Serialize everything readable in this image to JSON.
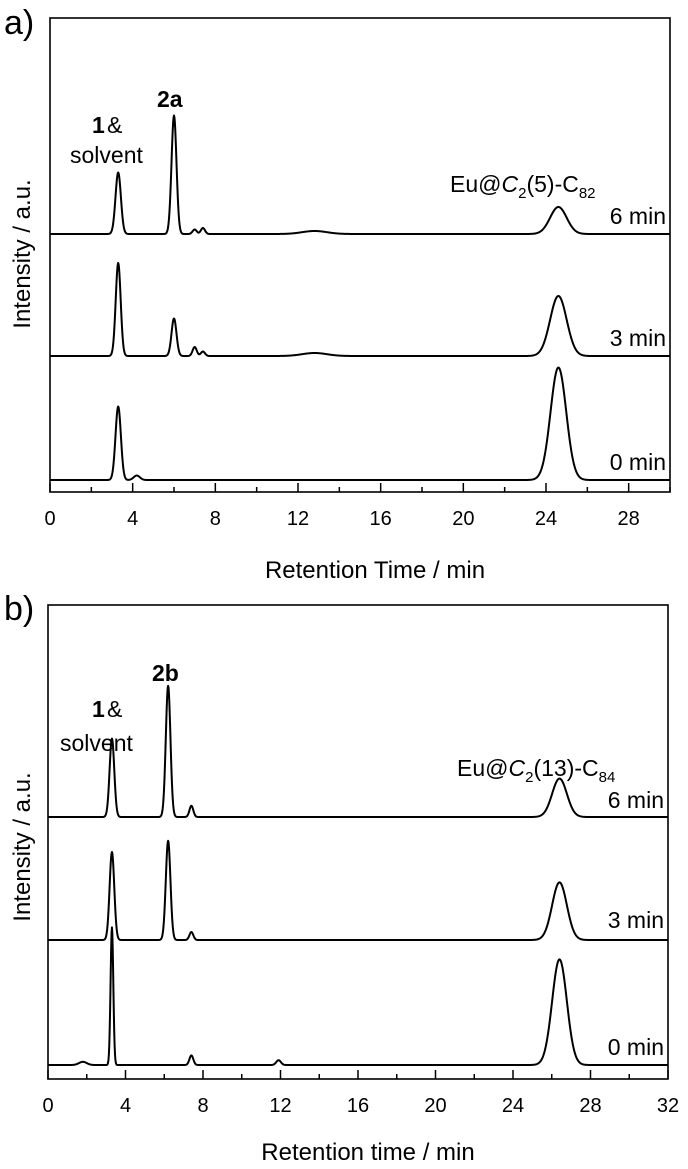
{
  "chart_data": [
    {
      "type": "line",
      "panel_label": "a)",
      "xlabel": "Retention Time / min",
      "ylabel": "Intensity / a.u.",
      "xlim": [
        0,
        30
      ],
      "x_ticks": [
        "0",
        "4",
        "8",
        "12",
        "16",
        "20",
        "24",
        "28"
      ],
      "peak_labels": {
        "p1_number": "1",
        "p1_amp": "&",
        "p1_solvent": "solvent",
        "p2": "2a"
      },
      "compound_label": {
        "prefix": "Eu@",
        "cage_symbol": "C",
        "cage_sub": "2",
        "isomer": "(5)-C",
        "carbon_sub": "82"
      },
      "series": [
        {
          "name": "6 min",
          "peaks": [
            {
              "x": 3.3,
              "height": 0.41,
              "width": 0.13
            },
            {
              "x": 6.0,
              "height": 0.79,
              "width": 0.12
            },
            {
              "x": 7.0,
              "height": 0.03,
              "width": 0.1
            },
            {
              "x": 7.4,
              "height": 0.04,
              "width": 0.1
            },
            {
              "x": 12.8,
              "height": 0.02,
              "width": 0.6
            },
            {
              "x": 24.6,
              "height": 0.18,
              "width": 0.4
            }
          ]
        },
        {
          "name": "3 min",
          "peaks": [
            {
              "x": 3.3,
              "height": 0.62,
              "width": 0.12
            },
            {
              "x": 6.0,
              "height": 0.25,
              "width": 0.12
            },
            {
              "x": 7.0,
              "height": 0.06,
              "width": 0.1
            },
            {
              "x": 7.4,
              "height": 0.03,
              "width": 0.1
            },
            {
              "x": 12.8,
              "height": 0.02,
              "width": 0.6
            },
            {
              "x": 24.6,
              "height": 0.4,
              "width": 0.4
            }
          ]
        },
        {
          "name": "0 min",
          "peaks": [
            {
              "x": 3.3,
              "height": 0.49,
              "width": 0.13
            },
            {
              "x": 4.2,
              "height": 0.03,
              "width": 0.15
            },
            {
              "x": 24.6,
              "height": 0.75,
              "width": 0.38
            }
          ]
        }
      ]
    },
    {
      "type": "line",
      "panel_label": "b)",
      "xlabel": "Retention time / min",
      "ylabel": "Intensity / a.u.",
      "xlim": [
        0,
        32
      ],
      "x_ticks": [
        "0",
        "4",
        "8",
        "12",
        "16",
        "20",
        "24",
        "28",
        "32"
      ],
      "peak_labels": {
        "p1_number": "1",
        "p1_amp": "&",
        "p1_solvent": "solvent",
        "p2": "2b"
      },
      "compound_label": {
        "prefix": "Eu@",
        "cage_symbol": "C",
        "cage_sub": "2",
        "isomer": "(13)-C",
        "carbon_sub": "84"
      },
      "series": [
        {
          "name": "6 min",
          "peaks": [
            {
              "x": 3.3,
              "height": 0.49,
              "width": 0.12
            },
            {
              "x": 6.2,
              "height": 0.82,
              "width": 0.12
            },
            {
              "x": 7.4,
              "height": 0.07,
              "width": 0.1
            },
            {
              "x": 26.4,
              "height": 0.24,
              "width": 0.38
            }
          ]
        },
        {
          "name": "3 min",
          "peaks": [
            {
              "x": 3.3,
              "height": 0.55,
              "width": 0.12
            },
            {
              "x": 6.2,
              "height": 0.62,
              "width": 0.12
            },
            {
              "x": 7.4,
              "height": 0.05,
              "width": 0.1
            },
            {
              "x": 26.4,
              "height": 0.36,
              "width": 0.38
            }
          ]
        },
        {
          "name": "0 min",
          "peaks": [
            {
              "x": 1.8,
              "height": 0.02,
              "width": 0.2
            },
            {
              "x": 3.3,
              "height": 0.86,
              "width": 0.07
            },
            {
              "x": 7.4,
              "height": 0.06,
              "width": 0.1
            },
            {
              "x": 11.9,
              "height": 0.03,
              "width": 0.12
            },
            {
              "x": 26.4,
              "height": 0.66,
              "width": 0.38
            }
          ]
        }
      ]
    }
  ]
}
